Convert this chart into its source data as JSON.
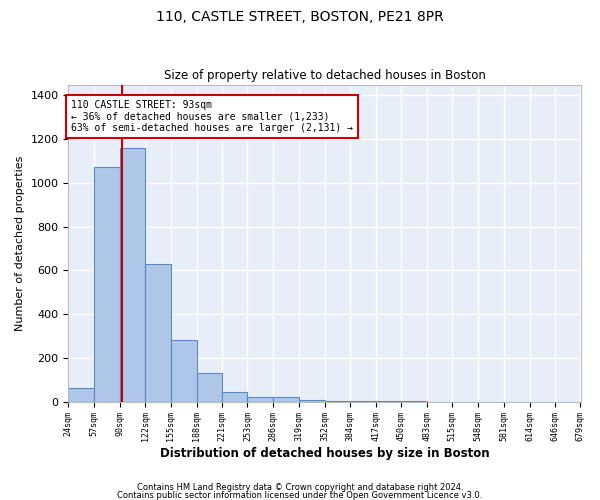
{
  "title1": "110, CASTLE STREET, BOSTON, PE21 8PR",
  "title2": "Size of property relative to detached houses in Boston",
  "xlabel": "Distribution of detached houses by size in Boston",
  "ylabel": "Number of detached properties",
  "footer1": "Contains HM Land Registry data © Crown copyright and database right 2024.",
  "footer2": "Contains public sector information licensed under the Open Government Licence v3.0.",
  "annotation_title": "110 CASTLE STREET: 93sqm",
  "annotation_line1": "← 36% of detached houses are smaller (1,233)",
  "annotation_line2": "63% of semi-detached houses are larger (2,131) →",
  "property_size": 93,
  "bin_edges": [
    24,
    57,
    90,
    122,
    155,
    188,
    221,
    253,
    286,
    319,
    352,
    384,
    417,
    450,
    483,
    515,
    548,
    581,
    614,
    646,
    679
  ],
  "bar_heights": [
    65,
    1075,
    1160,
    630,
    280,
    130,
    45,
    20,
    20,
    8,
    5,
    3,
    2,
    2,
    1,
    1,
    1,
    1,
    0,
    1
  ],
  "bar_color": "#aec6e8",
  "bar_edge_color": "#5a8abf",
  "vline_color": "#cc0000",
  "annotation_box_color": "#cc0000",
  "background_color": "#e8eef8",
  "grid_color": "#ffffff",
  "ylim": [
    0,
    1450
  ],
  "yticks": [
    0,
    200,
    400,
    600,
    800,
    1000,
    1200,
    1400
  ]
}
